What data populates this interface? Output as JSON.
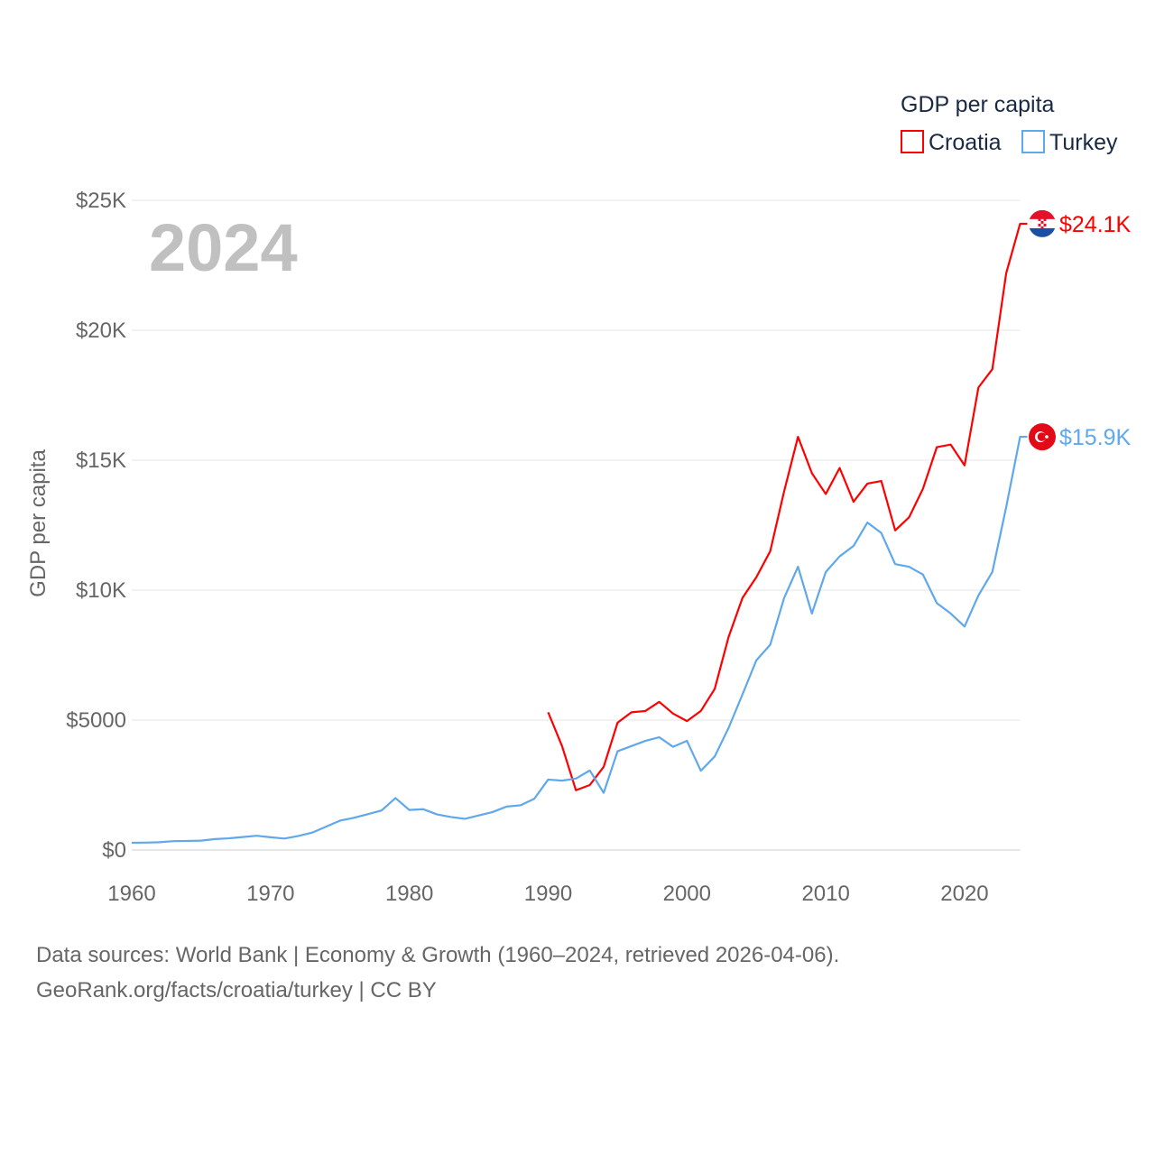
{
  "chart_data": {
    "type": "line",
    "title": "GDP per capita",
    "year_label": "2024",
    "ylabel": "GDP per capita",
    "xlabel": "",
    "xlim": [
      1960,
      2024
    ],
    "ylim": [
      0,
      25000
    ],
    "x_ticks": [
      1960,
      1970,
      1980,
      1990,
      2000,
      2010,
      2020
    ],
    "y_ticks": [
      {
        "value": 0,
        "label": "$0"
      },
      {
        "value": 5000,
        "label": "$5000"
      },
      {
        "value": 10000,
        "label": "$10K"
      },
      {
        "value": 15000,
        "label": "$15K"
      },
      {
        "value": 20000,
        "label": "$20K"
      },
      {
        "value": 25000,
        "label": "$25K"
      }
    ],
    "grid": true,
    "legend_position": "top-right",
    "series": [
      {
        "name": "Croatia",
        "color": "#ff0000",
        "end_label": "$24.1K",
        "flag": "croatia-flag",
        "start_year": 1990,
        "values": [
          5300,
          4000,
          2300,
          2500,
          3200,
          4900,
          5300,
          5350,
          5700,
          5250,
          4960,
          5350,
          6200,
          8200,
          9700,
          10500,
          11500,
          13800,
          15900,
          14500,
          13700,
          14700,
          13400,
          14100,
          14200,
          12300,
          12800,
          13900,
          15500,
          15600,
          14800,
          17800,
          18500,
          22200,
          24100
        ]
      },
      {
        "name": "Turkey",
        "color": "#5fa8ec",
        "end_label": "$15.9K",
        "flag": "turkey-flag",
        "start_year": 1960,
        "values": [
          280,
          285,
          300,
          340,
          350,
          360,
          420,
          450,
          500,
          550,
          490,
          440,
          540,
          670,
          900,
          1130,
          1240,
          1380,
          1520,
          2000,
          1540,
          1570,
          1370,
          1270,
          1200,
          1330,
          1460,
          1670,
          1720,
          1970,
          2710,
          2670,
          2750,
          3060,
          2200,
          3800,
          4000,
          4200,
          4340,
          3970,
          4200,
          3050,
          3600,
          4700,
          5990,
          7300,
          7900,
          9700,
          10900,
          9100,
          10700,
          11300,
          11700,
          12600,
          12200,
          11000,
          10900,
          10600,
          9500,
          9100,
          8600,
          9800,
          10700,
          13200,
          15900
        ]
      }
    ]
  },
  "footer": {
    "line1": "Data sources: World Bank | Economy & Growth (1960–2024, retrieved 2026-04-06).",
    "line2": "GeoRank.org/facts/croatia/turkey | CC BY"
  }
}
